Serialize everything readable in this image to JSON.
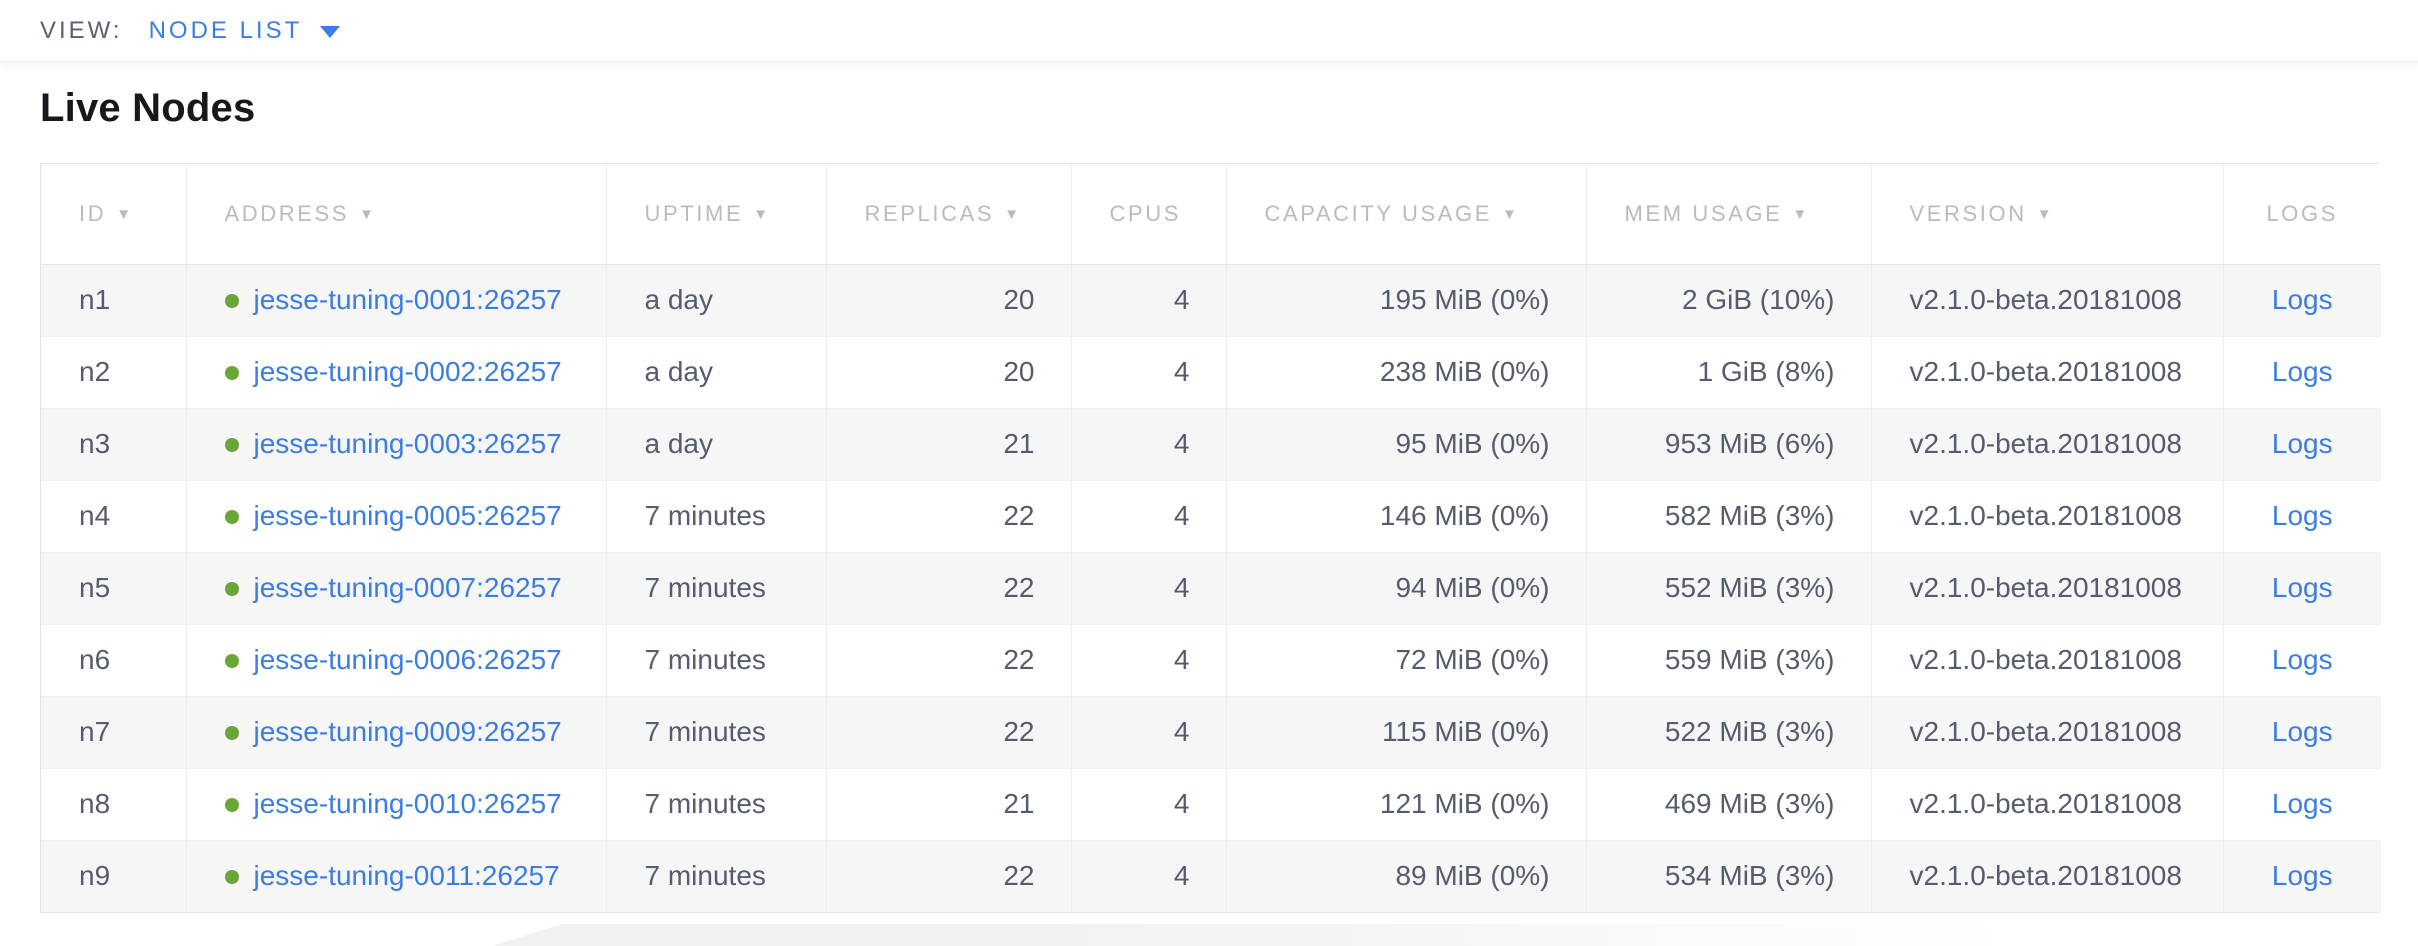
{
  "toolbar": {
    "view_label": "VIEW:",
    "view_value": "NODE LIST"
  },
  "page": {
    "title": "Live Nodes"
  },
  "icons": {
    "sort_desc": "▼",
    "dropdown_caret": "▼",
    "live_status_dot": "green-dot"
  },
  "colors": {
    "accent_blue": "#3b7de2",
    "live_green": "#69a636",
    "header_text": "#b8bbc2",
    "cell_text": "#555c6e",
    "alt_row_bg": "#f6f6f7"
  },
  "table": {
    "columns": [
      {
        "key": "id",
        "label": "ID",
        "sortable": true,
        "align": "left",
        "header_align": "left"
      },
      {
        "key": "address",
        "label": "ADDRESS",
        "sortable": true,
        "align": "left",
        "header_align": "left"
      },
      {
        "key": "uptime",
        "label": "UPTIME",
        "sortable": true,
        "align": "left",
        "header_align": "left"
      },
      {
        "key": "replicas",
        "label": "REPLICAS",
        "sortable": true,
        "align": "right",
        "header_align": "left"
      },
      {
        "key": "cpus",
        "label": "CPUS",
        "sortable": false,
        "align": "right",
        "header_align": "left"
      },
      {
        "key": "capacity_usage",
        "label": "CAPACITY USAGE",
        "sortable": true,
        "align": "right",
        "header_align": "left"
      },
      {
        "key": "mem_usage",
        "label": "MEM USAGE",
        "sortable": true,
        "align": "right",
        "header_align": "left"
      },
      {
        "key": "version",
        "label": "VERSION",
        "sortable": true,
        "align": "left",
        "header_align": "left"
      },
      {
        "key": "logs",
        "label": "LOGS",
        "sortable": false,
        "align": "center",
        "header_align": "center"
      }
    ],
    "rows": [
      {
        "id": "n1",
        "status": "live",
        "address": "jesse-tuning-0001:26257",
        "uptime": "a day",
        "replicas": "20",
        "cpus": "4",
        "capacity_usage": "195 MiB (0%)",
        "mem_usage": "2 GiB (10%)",
        "version": "v2.1.0-beta.20181008",
        "logs": "Logs"
      },
      {
        "id": "n2",
        "status": "live",
        "address": "jesse-tuning-0002:26257",
        "uptime": "a day",
        "replicas": "20",
        "cpus": "4",
        "capacity_usage": "238 MiB (0%)",
        "mem_usage": "1 GiB (8%)",
        "version": "v2.1.0-beta.20181008",
        "logs": "Logs"
      },
      {
        "id": "n3",
        "status": "live",
        "address": "jesse-tuning-0003:26257",
        "uptime": "a day",
        "replicas": "21",
        "cpus": "4",
        "capacity_usage": "95 MiB (0%)",
        "mem_usage": "953 MiB (6%)",
        "version": "v2.1.0-beta.20181008",
        "logs": "Logs"
      },
      {
        "id": "n4",
        "status": "live",
        "address": "jesse-tuning-0005:26257",
        "uptime": "7 minutes",
        "replicas": "22",
        "cpus": "4",
        "capacity_usage": "146 MiB (0%)",
        "mem_usage": "582 MiB (3%)",
        "version": "v2.1.0-beta.20181008",
        "logs": "Logs"
      },
      {
        "id": "n5",
        "status": "live",
        "address": "jesse-tuning-0007:26257",
        "uptime": "7 minutes",
        "replicas": "22",
        "cpus": "4",
        "capacity_usage": "94 MiB (0%)",
        "mem_usage": "552 MiB (3%)",
        "version": "v2.1.0-beta.20181008",
        "logs": "Logs"
      },
      {
        "id": "n6",
        "status": "live",
        "address": "jesse-tuning-0006:26257",
        "uptime": "7 minutes",
        "replicas": "22",
        "cpus": "4",
        "capacity_usage": "72 MiB (0%)",
        "mem_usage": "559 MiB (3%)",
        "version": "v2.1.0-beta.20181008",
        "logs": "Logs"
      },
      {
        "id": "n7",
        "status": "live",
        "address": "jesse-tuning-0009:26257",
        "uptime": "7 minutes",
        "replicas": "22",
        "cpus": "4",
        "capacity_usage": "115 MiB (0%)",
        "mem_usage": "522 MiB (3%)",
        "version": "v2.1.0-beta.20181008",
        "logs": "Logs"
      },
      {
        "id": "n8",
        "status": "live",
        "address": "jesse-tuning-0010:26257",
        "uptime": "7 minutes",
        "replicas": "21",
        "cpus": "4",
        "capacity_usage": "121 MiB (0%)",
        "mem_usage": "469 MiB (3%)",
        "version": "v2.1.0-beta.20181008",
        "logs": "Logs"
      },
      {
        "id": "n9",
        "status": "live",
        "address": "jesse-tuning-0011:26257",
        "uptime": "7 minutes",
        "replicas": "22",
        "cpus": "4",
        "capacity_usage": "89 MiB (0%)",
        "mem_usage": "534 MiB (3%)",
        "version": "v2.1.0-beta.20181008",
        "logs": "Logs"
      }
    ]
  }
}
